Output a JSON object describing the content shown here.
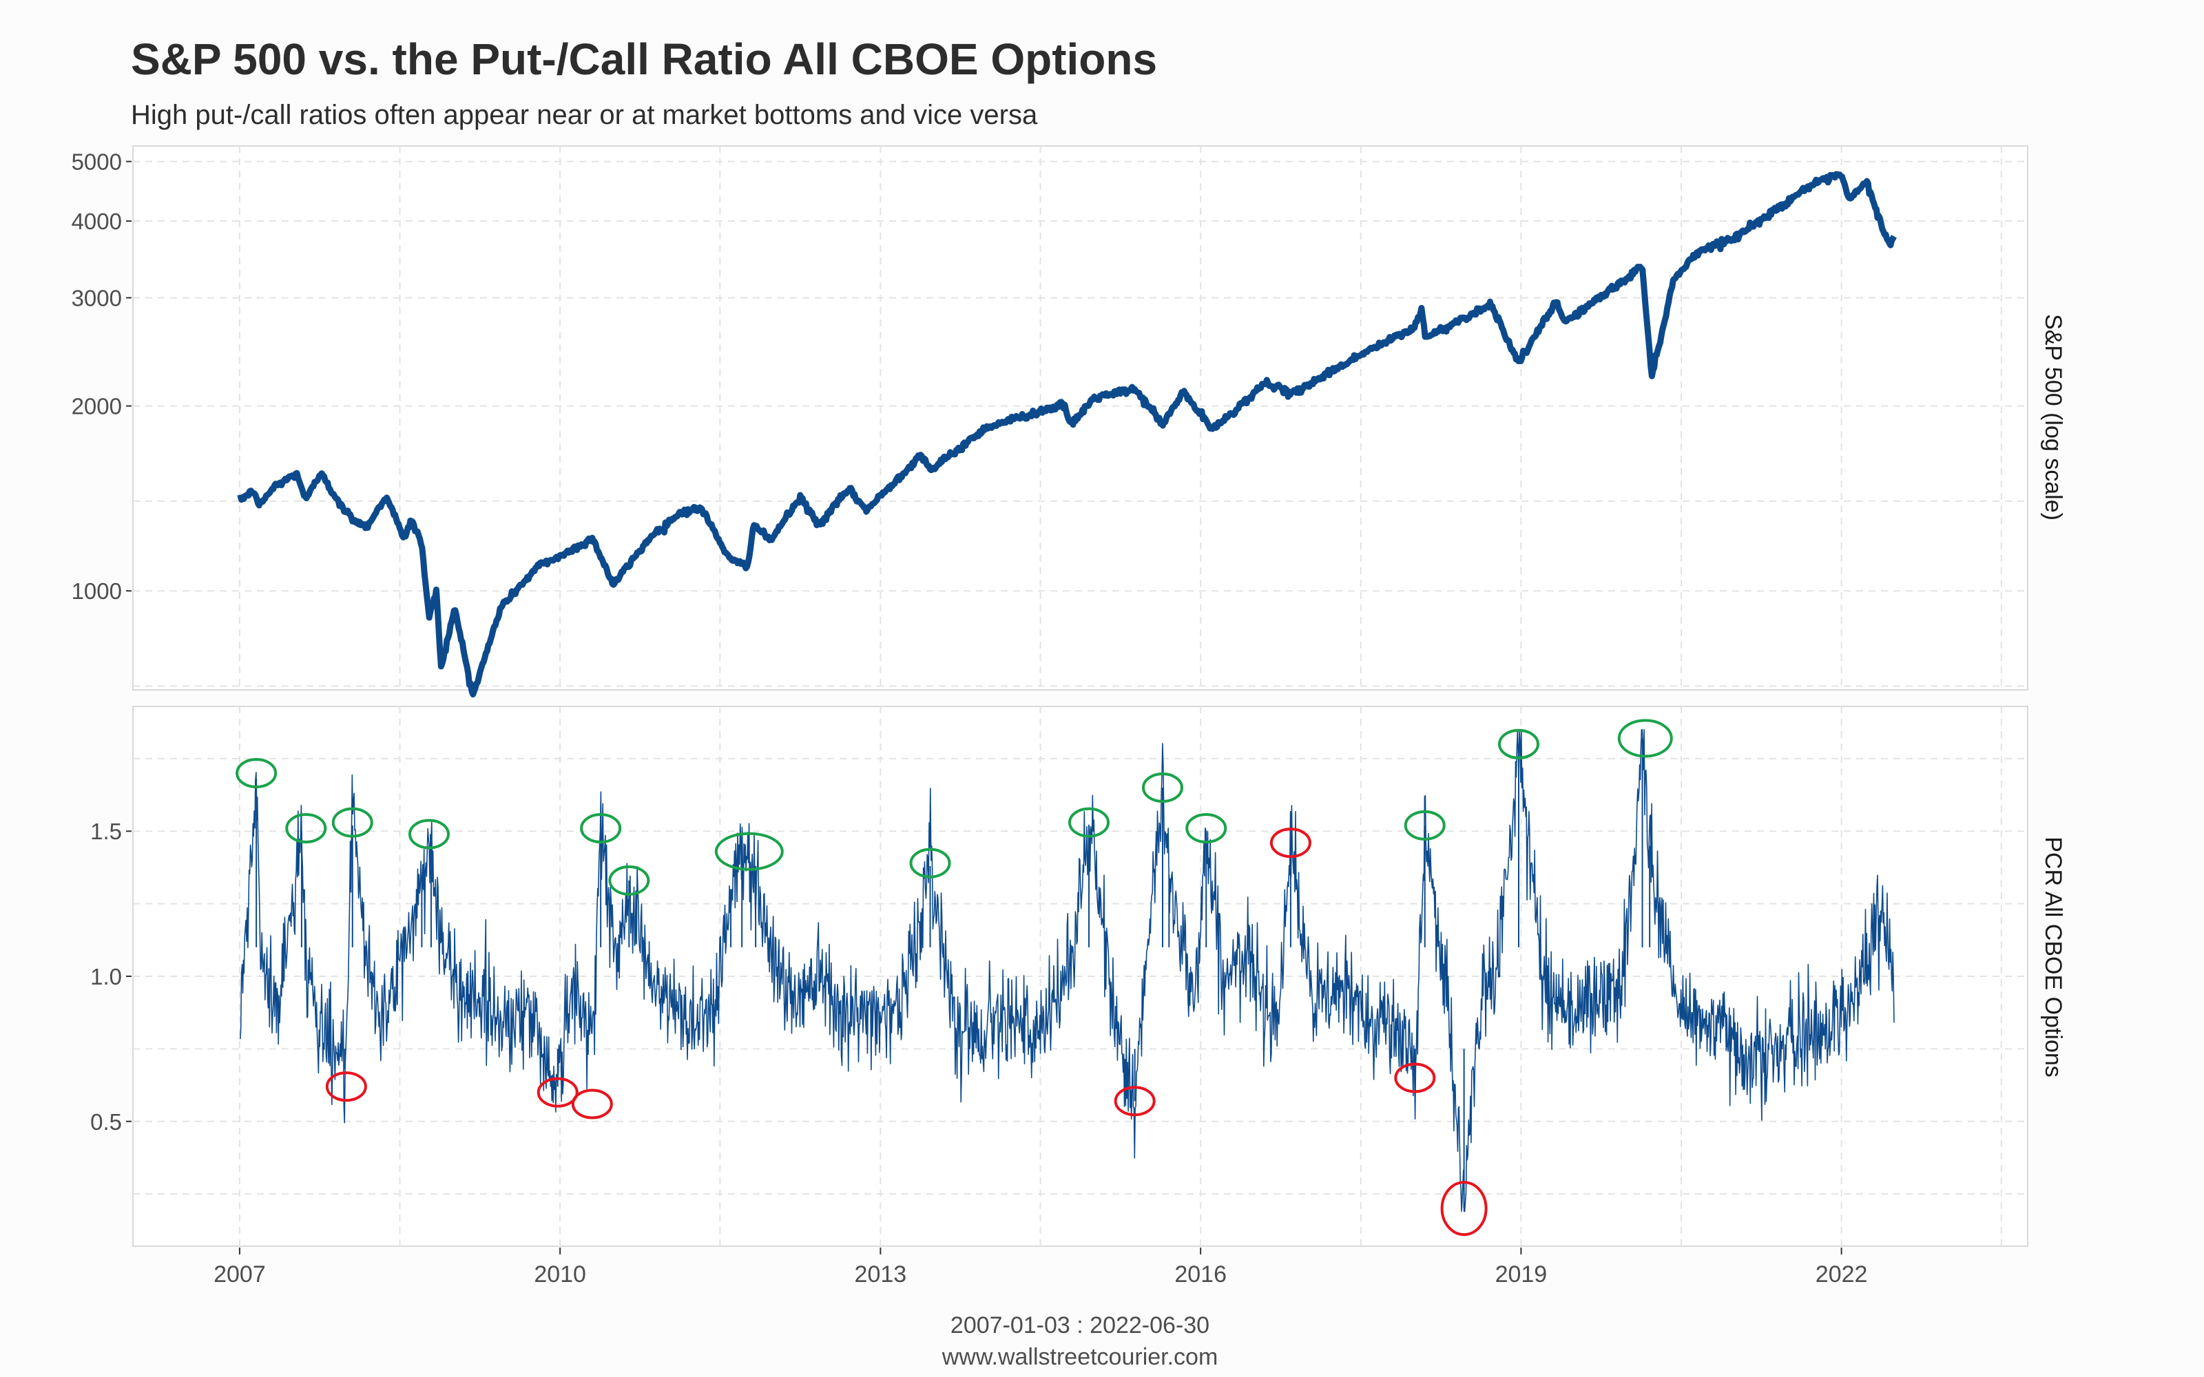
{
  "chart_data": {
    "type": "line",
    "title": "S&P 500 vs. the Put-/Call Ratio All CBOE Options",
    "subtitle": "High put-/call ratios often appear near or at market bottoms and vice versa",
    "caption_range": "2007-01-03 : 2022-06-30",
    "caption_source": "www.wallstreetcourier.com",
    "x_axis": {
      "type": "date",
      "range": [
        "2006-01-01",
        "2023-09-30"
      ],
      "tick_labels": [
        "2007",
        "2010",
        "2013",
        "2016",
        "2019",
        "2022"
      ]
    },
    "grid": true,
    "colors": {
      "line": "#0d4a8c",
      "panel_border": "#d9d9d9",
      "grid": "#e3e3e3",
      "highlight_high": "#1aa34a",
      "highlight_low": "#e8141f"
    },
    "panels": [
      {
        "strip_label": "S&P 500 (log scale)",
        "y_scale": "log",
        "ylim": [
          690,
          5300
        ],
        "y_tick_labels": [
          "1000",
          "2000",
          "3000",
          "4000",
          "5000"
        ],
        "series": [
          {
            "x": [
              "2007-01-03",
              "2007-02-20",
              "2007-03-05",
              "2007-05-01",
              "2007-07-16",
              "2007-08-15",
              "2007-10-09",
              "2007-11-26",
              "2008-01-22",
              "2008-03-10",
              "2008-05-19",
              "2008-07-15",
              "2008-08-11",
              "2008-09-15",
              "2008-10-10",
              "2008-11-04",
              "2008-11-20",
              "2009-01-06",
              "2009-03-09",
              "2009-06-12",
              "2009-10-19",
              "2010-01-19",
              "2010-04-23",
              "2010-07-02",
              "2010-11-04",
              "2011-02-18",
              "2011-04-29",
              "2011-08-08",
              "2011-10-03",
              "2011-10-27",
              "2011-12-19",
              "2012-04-02",
              "2012-06-04",
              "2012-09-14",
              "2012-11-15",
              "2013-05-21",
              "2013-06-24",
              "2013-12-31",
              "2014-09-18",
              "2014-10-15",
              "2014-12-31",
              "2015-05-21",
              "2015-08-25",
              "2015-11-03",
              "2016-02-11",
              "2016-08-15",
              "2016-11-04",
              "2017-06-30",
              "2017-12-29",
              "2018-01-26",
              "2018-02-08",
              "2018-09-20",
              "2018-12-24",
              "2019-04-30",
              "2019-06-03",
              "2019-12-31",
              "2020-02-19",
              "2020-03-23",
              "2020-06-08",
              "2020-09-02",
              "2020-12-31",
              "2021-06-30",
              "2021-09-02",
              "2021-12-31",
              "2022-01-27",
              "2022-03-29",
              "2022-05-20",
              "2022-06-16",
              "2022-06-30"
            ],
            "values": [
              1410,
              1456,
              1374,
              1480,
              1552,
              1406,
              1565,
              1407,
              1310,
              1273,
              1426,
              1215,
              1305,
              1192,
              899,
              1005,
              752,
              935,
              676,
              940,
              1098,
              1150,
              1217,
              1023,
              1221,
              1343,
              1363,
              1119,
              1099,
              1285,
              1205,
              1419,
              1278,
              1465,
              1353,
              1669,
              1573,
              1848,
              2011,
              1862,
              2059,
              2131,
              1867,
              2109,
              1829,
              2190,
              2085,
              2423,
              2674,
              2873,
              2581,
              2930,
              2351,
              2946,
              2744,
              3231,
              3386,
              2237,
              3232,
              3580,
              3756,
              4298,
              4537,
              4766,
              4326,
              4632,
              3901,
              3667,
              3785
            ]
          }
        ]
      },
      {
        "strip_label": "PCR All CBOE Options",
        "y_scale": "linear",
        "ylim": [
          0.07,
          1.93
        ],
        "y_tick_labels": [
          "0.5",
          "1.0",
          "1.5"
        ],
        "series": [
          {
            "x": [
              "2007-01-03",
              "2007-02-27",
              "2007-03-15",
              "2007-05-15",
              "2007-08-01",
              "2007-08-16",
              "2007-10-01",
              "2007-12-27",
              "2008-01-22",
              "2008-03-14",
              "2008-05-15",
              "2008-07-15",
              "2008-09-15",
              "2008-10-17",
              "2008-11-20",
              "2009-01-15",
              "2009-03-06",
              "2009-06-15",
              "2009-09-15",
              "2009-12-24",
              "2010-02-05",
              "2010-04-21",
              "2010-05-20",
              "2010-07-15",
              "2010-08-25",
              "2010-11-15",
              "2011-03-15",
              "2011-06-15",
              "2011-08-08",
              "2011-09-15",
              "2011-11-01",
              "2011-12-15",
              "2012-03-15",
              "2012-06-01",
              "2012-09-15",
              "2012-12-15",
              "2013-03-15",
              "2013-06-20",
              "2013-09-15",
              "2013-12-15",
              "2014-03-15",
              "2014-06-15",
              "2014-10-15",
              "2014-12-15",
              "2015-03-15",
              "2015-05-21",
              "2015-08-24",
              "2015-09-15",
              "2015-12-15",
              "2016-01-20",
              "2016-03-15",
              "2016-06-15",
              "2016-09-15",
              "2016-11-04",
              "2017-01-15",
              "2017-04-15",
              "2017-07-15",
              "2017-10-15",
              "2018-01-03",
              "2018-02-06",
              "2018-04-15",
              "2018-06-20",
              "2018-08-15",
              "2018-10-15",
              "2018-12-24",
              "2019-03-15",
              "2019-06-15",
              "2019-09-15",
              "2019-12-15",
              "2020-02-20",
              "2020-03-16",
              "2020-06-15",
              "2020-09-15",
              "2020-12-15",
              "2021-03-15",
              "2021-06-15",
              "2021-09-15",
              "2021-12-15",
              "2022-03-15",
              "2022-05-09",
              "2022-06-30"
            ],
            "values": [
              0.82,
              1.68,
              1.02,
              0.9,
              1.5,
              1.05,
              0.85,
              0.68,
              1.52,
              1.0,
              0.85,
              1.08,
              1.32,
              1.48,
              1.1,
              0.95,
              0.95,
              0.85,
              0.88,
              0.62,
              0.95,
              0.8,
              1.52,
              1.0,
              1.33,
              0.95,
              0.85,
              0.9,
              1.3,
              1.4,
              1.38,
              1.1,
              0.9,
              1.05,
              0.85,
              0.88,
              0.9,
              1.38,
              0.85,
              0.8,
              0.92,
              0.75,
              1.05,
              1.52,
              0.85,
              0.57,
              1.65,
              1.35,
              0.92,
              1.5,
              1.0,
              1.05,
              0.85,
              1.45,
              0.9,
              0.95,
              0.88,
              0.85,
              0.65,
              1.52,
              1.0,
              0.2,
              0.92,
              1.05,
              1.8,
              1.0,
              0.88,
              0.92,
              0.95,
              1.82,
              1.45,
              0.9,
              0.85,
              0.78,
              0.72,
              0.75,
              0.8,
              0.85,
              1.0,
              1.2,
              1.05
            ]
          }
        ],
        "annotations": [
          {
            "type": "high",
            "x": "2007-02-27",
            "y": 1.7
          },
          {
            "type": "high",
            "x": "2007-08-16",
            "y": 1.51
          },
          {
            "type": "high",
            "x": "2008-01-22",
            "y": 1.53
          },
          {
            "type": "high",
            "x": "2008-10-10",
            "y": 1.49
          },
          {
            "type": "high",
            "x": "2010-05-20",
            "y": 1.51
          },
          {
            "type": "high",
            "x": "2010-08-25",
            "y": 1.33
          },
          {
            "type": "high",
            "x": "2011-10-10",
            "y": 1.43
          },
          {
            "type": "high",
            "x": "2013-06-20",
            "y": 1.39
          },
          {
            "type": "high",
            "x": "2014-12-15",
            "y": 1.53
          },
          {
            "type": "high",
            "x": "2015-08-24",
            "y": 1.65
          },
          {
            "type": "high",
            "x": "2016-01-20",
            "y": 1.51
          },
          {
            "type": "high",
            "x": "2018-02-06",
            "y": 1.52
          },
          {
            "type": "high",
            "x": "2018-12-24",
            "y": 1.8
          },
          {
            "type": "high",
            "x": "2020-03-01",
            "y": 1.82
          },
          {
            "type": "low",
            "x": "2008-01-01",
            "y": 0.62
          },
          {
            "type": "low",
            "x": "2009-12-24",
            "y": 0.6
          },
          {
            "type": "low",
            "x": "2010-04-21",
            "y": 0.56
          },
          {
            "type": "low",
            "x": "2015-05-21",
            "y": 0.57
          },
          {
            "type": "low",
            "x": "2016-11-04",
            "y": 1.46
          },
          {
            "type": "low",
            "x": "2018-01-03",
            "y": 0.65
          },
          {
            "type": "low",
            "x": "2018-06-20",
            "y": 0.2
          }
        ]
      }
    ]
  }
}
